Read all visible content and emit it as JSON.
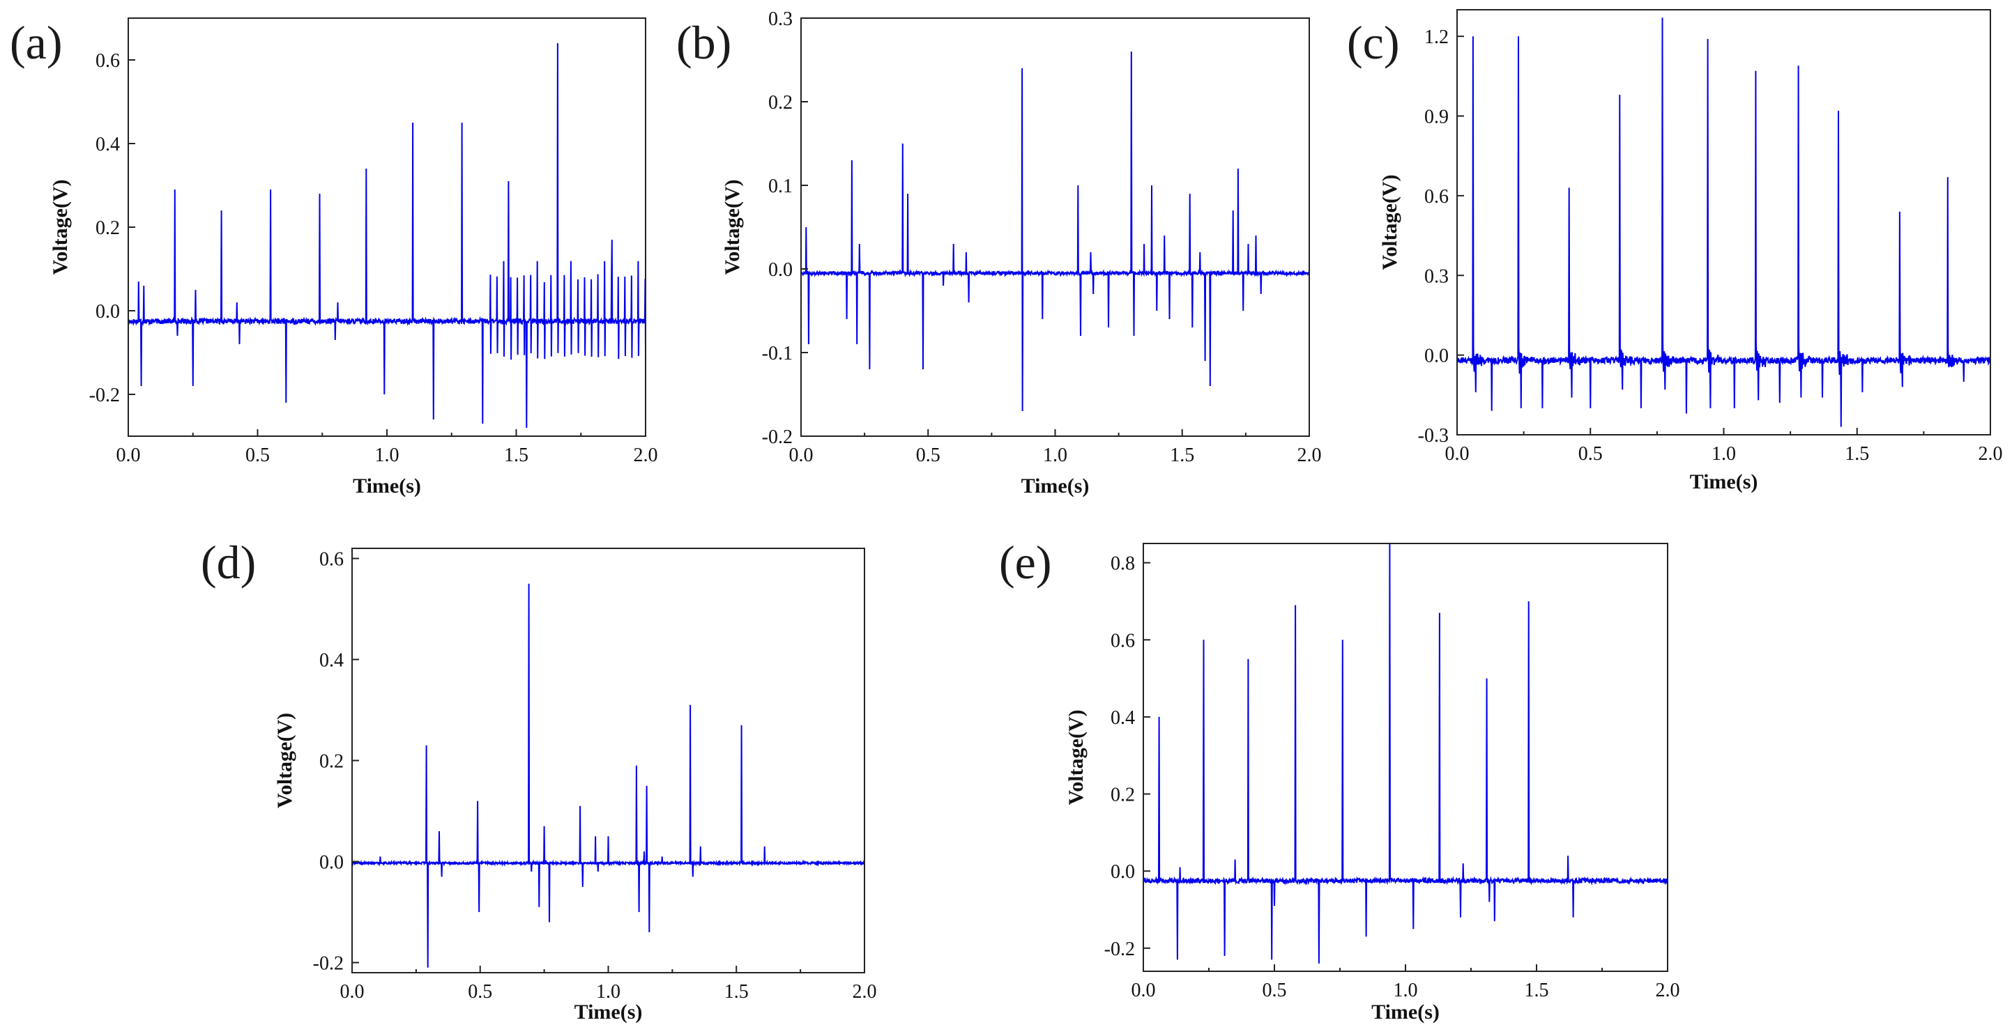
{
  "figure": {
    "background": "#ffffff",
    "line_color": "#0000ee",
    "axis_color": "#222222"
  },
  "chart_data": [
    {
      "id": "a",
      "label": "(a)",
      "type": "line",
      "xlabel": "Time(s)",
      "ylabel": "Voltage(V)",
      "xlim": [
        0.0,
        2.0
      ],
      "ylim": [
        -0.3,
        0.7
      ],
      "xticks": [
        0.0,
        0.5,
        1.0,
        1.5,
        2.0
      ],
      "xtick_labels": [
        "0.0",
        "0.5",
        "1.0",
        "1.5",
        "2.0"
      ],
      "yticks": [
        -0.2,
        0.0,
        0.2,
        0.4,
        0.6
      ],
      "ytick_labels": [
        "-0.2",
        "0.0",
        "0.2",
        "0.4",
        "0.6"
      ],
      "baseline": -0.025,
      "noise": 0.006,
      "spikes": [
        [
          0.04,
          0.07
        ],
        [
          0.05,
          -0.18
        ],
        [
          0.06,
          0.06
        ],
        [
          0.18,
          0.29
        ],
        [
          0.19,
          -0.06
        ],
        [
          0.25,
          -0.18
        ],
        [
          0.26,
          0.05
        ],
        [
          0.36,
          0.24
        ],
        [
          0.42,
          0.02
        ],
        [
          0.43,
          -0.08
        ],
        [
          0.55,
          0.29
        ],
        [
          0.61,
          -0.22
        ],
        [
          0.74,
          0.28
        ],
        [
          0.8,
          -0.07
        ],
        [
          0.81,
          0.02
        ],
        [
          0.92,
          0.34
        ],
        [
          0.99,
          -0.2
        ],
        [
          1.1,
          0.45
        ],
        [
          1.18,
          -0.26
        ],
        [
          1.29,
          0.45
        ],
        [
          1.37,
          -0.27
        ],
        [
          1.47,
          0.31
        ],
        [
          1.54,
          -0.28
        ],
        [
          1.66,
          0.64
        ],
        [
          1.87,
          0.17
        ]
      ],
      "burst": {
        "x_start": 1.4,
        "x_end": 2.0,
        "step": 0.026,
        "high": 0.09,
        "low": -0.12
      }
    },
    {
      "id": "b",
      "label": "(b)",
      "type": "line",
      "xlabel": "Time(s)",
      "ylabel": "Voltage(V)",
      "xlim": [
        0.0,
        2.0
      ],
      "ylim": [
        -0.2,
        0.3
      ],
      "xticks": [
        0.0,
        0.5,
        1.0,
        1.5,
        2.0
      ],
      "xtick_labels": [
        "0.0",
        "0.5",
        "1.0",
        "1.5",
        "2.0"
      ],
      "yticks": [
        -0.2,
        -0.1,
        0.0,
        0.1,
        0.2,
        0.3
      ],
      "ytick_labels": [
        "-0.2",
        "-0.1",
        "0.0",
        "0.1",
        "0.2",
        "0.3"
      ],
      "baseline": -0.005,
      "noise": 0.002,
      "spikes": [
        [
          0.02,
          0.05
        ],
        [
          0.03,
          -0.09
        ],
        [
          0.18,
          -0.06
        ],
        [
          0.2,
          0.13
        ],
        [
          0.22,
          -0.09
        ],
        [
          0.23,
          0.03
        ],
        [
          0.27,
          -0.12
        ],
        [
          0.4,
          0.15
        ],
        [
          0.42,
          0.09
        ],
        [
          0.48,
          -0.12
        ],
        [
          0.56,
          -0.02
        ],
        [
          0.6,
          0.03
        ],
        [
          0.65,
          0.02
        ],
        [
          0.66,
          -0.04
        ],
        [
          0.87,
          0.24
        ],
        [
          0.871,
          -0.17
        ],
        [
          0.95,
          -0.06
        ],
        [
          1.09,
          0.1
        ],
        [
          1.1,
          -0.08
        ],
        [
          1.14,
          0.02
        ],
        [
          1.15,
          -0.03
        ],
        [
          1.21,
          -0.07
        ],
        [
          1.3,
          0.26
        ],
        [
          1.31,
          -0.08
        ],
        [
          1.35,
          0.03
        ],
        [
          1.38,
          0.1
        ],
        [
          1.4,
          -0.05
        ],
        [
          1.43,
          0.04
        ],
        [
          1.45,
          -0.06
        ],
        [
          1.53,
          0.09
        ],
        [
          1.54,
          -0.07
        ],
        [
          1.57,
          0.02
        ],
        [
          1.59,
          -0.11
        ],
        [
          1.61,
          -0.14
        ],
        [
          1.7,
          0.07
        ],
        [
          1.72,
          0.12
        ],
        [
          1.74,
          -0.05
        ],
        [
          1.76,
          0.03
        ],
        [
          1.79,
          0.04
        ],
        [
          1.81,
          -0.03
        ]
      ]
    },
    {
      "id": "c",
      "label": "(c)",
      "type": "line",
      "xlabel": "Time(s)",
      "ylabel": "Voltage(V)",
      "xlim": [
        0.0,
        2.0
      ],
      "ylim": [
        -0.3,
        1.3
      ],
      "xticks": [
        0.0,
        0.5,
        1.0,
        1.5,
        2.0
      ],
      "xtick_labels": [
        "0.0",
        "0.5",
        "1.0",
        "1.5",
        "2.0"
      ],
      "yticks": [
        -0.3,
        0.0,
        0.3,
        0.6,
        0.9,
        1.2
      ],
      "ytick_labels": [
        "-0.3",
        "0.0",
        "0.3",
        "0.6",
        "0.9",
        "1.2"
      ],
      "baseline": -0.02,
      "noise": 0.012,
      "spikes": [
        [
          0.06,
          1.2
        ],
        [
          0.07,
          -0.14
        ],
        [
          0.13,
          -0.21
        ],
        [
          0.23,
          1.2
        ],
        [
          0.24,
          -0.2
        ],
        [
          0.32,
          -0.2
        ],
        [
          0.42,
          0.63
        ],
        [
          0.43,
          -0.16
        ],
        [
          0.5,
          -0.2
        ],
        [
          0.61,
          0.98
        ],
        [
          0.62,
          -0.13
        ],
        [
          0.69,
          -0.2
        ],
        [
          0.77,
          1.27
        ],
        [
          0.78,
          -0.13
        ],
        [
          0.86,
          -0.22
        ],
        [
          0.94,
          1.19
        ],
        [
          0.95,
          -0.2
        ],
        [
          1.04,
          -0.2
        ],
        [
          1.12,
          1.07
        ],
        [
          1.13,
          -0.17
        ],
        [
          1.21,
          -0.18
        ],
        [
          1.28,
          1.09
        ],
        [
          1.29,
          -0.16
        ],
        [
          1.37,
          -0.16
        ],
        [
          1.43,
          0.92
        ],
        [
          1.44,
          -0.27
        ],
        [
          1.52,
          -0.14
        ],
        [
          1.66,
          0.54
        ],
        [
          1.67,
          -0.12
        ],
        [
          1.84,
          0.67
        ],
        [
          1.9,
          -0.1
        ]
      ],
      "ripple_after_spike": true
    },
    {
      "id": "d",
      "label": "(d)",
      "type": "line",
      "xlabel": "Time(s)",
      "ylabel": "Voltage(V)",
      "xlim": [
        0.0,
        2.0
      ],
      "ylim": [
        -0.22,
        0.62
      ],
      "xticks": [
        0.0,
        0.5,
        1.0,
        1.5,
        2.0
      ],
      "xtick_labels": [
        "0.0",
        "0.5",
        "1.0",
        "1.5",
        "2.0"
      ],
      "yticks": [
        -0.2,
        0.0,
        0.2,
        0.4,
        0.6
      ],
      "ytick_labels": [
        "-0.2",
        "0.0",
        "0.2",
        "0.4",
        "0.6"
      ],
      "baseline": -0.003,
      "noise": 0.002,
      "spikes": [
        [
          0.11,
          0.01
        ],
        [
          0.29,
          0.23
        ],
        [
          0.295,
          -0.21
        ],
        [
          0.34,
          0.06
        ],
        [
          0.35,
          -0.03
        ],
        [
          0.49,
          0.12
        ],
        [
          0.495,
          -0.1
        ],
        [
          0.69,
          0.55
        ],
        [
          0.7,
          -0.02
        ],
        [
          0.73,
          -0.09
        ],
        [
          0.75,
          0.07
        ],
        [
          0.77,
          -0.12
        ],
        [
          0.89,
          0.11
        ],
        [
          0.9,
          -0.05
        ],
        [
          0.95,
          0.05
        ],
        [
          0.96,
          -0.02
        ],
        [
          1.0,
          0.05
        ],
        [
          1.11,
          0.19
        ],
        [
          1.12,
          -0.1
        ],
        [
          1.14,
          0.02
        ],
        [
          1.15,
          0.15
        ],
        [
          1.16,
          -0.14
        ],
        [
          1.21,
          0.01
        ],
        [
          1.32,
          0.31
        ],
        [
          1.33,
          -0.03
        ],
        [
          1.36,
          0.03
        ],
        [
          1.52,
          0.27
        ],
        [
          1.61,
          0.03
        ]
      ]
    },
    {
      "id": "e",
      "label": "(e)",
      "type": "line",
      "xlabel": "Time(s)",
      "ylabel": "Voltage(V)",
      "xlim": [
        0.0,
        2.0
      ],
      "ylim": [
        -0.26,
        0.85
      ],
      "xticks": [
        0.0,
        0.5,
        1.0,
        1.5,
        2.0
      ],
      "xtick_labels": [
        "0.0",
        "0.5",
        "1.0",
        "1.5",
        "2.0"
      ],
      "yticks": [
        -0.2,
        0.0,
        0.2,
        0.4,
        0.6,
        0.8
      ],
      "ytick_labels": [
        "-0.2",
        "0.0",
        "0.2",
        "0.4",
        "0.6",
        "0.8"
      ],
      "baseline": -0.025,
      "noise": 0.006,
      "spikes": [
        [
          0.06,
          0.4
        ],
        [
          0.13,
          -0.23
        ],
        [
          0.14,
          0.01
        ],
        [
          0.23,
          0.6
        ],
        [
          0.31,
          -0.22
        ],
        [
          0.35,
          0.03
        ],
        [
          0.4,
          0.55
        ],
        [
          0.49,
          -0.23
        ],
        [
          0.5,
          -0.09
        ],
        [
          0.58,
          0.69
        ],
        [
          0.67,
          -0.24
        ],
        [
          0.76,
          0.6
        ],
        [
          0.85,
          -0.17
        ],
        [
          0.94,
          0.85
        ],
        [
          1.03,
          -0.15
        ],
        [
          1.13,
          0.67
        ],
        [
          1.21,
          -0.12
        ],
        [
          1.22,
          0.02
        ],
        [
          1.31,
          0.5
        ],
        [
          1.32,
          -0.08
        ],
        [
          1.34,
          -0.13
        ],
        [
          1.47,
          0.7
        ],
        [
          1.62,
          0.04
        ],
        [
          1.64,
          -0.12
        ]
      ]
    }
  ]
}
